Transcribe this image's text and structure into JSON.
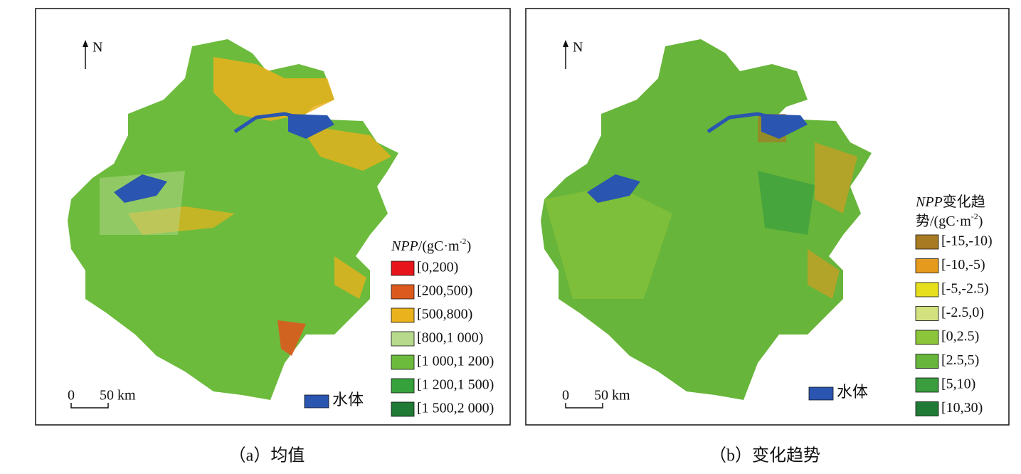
{
  "panels": [
    {
      "caption": "（a）均值",
      "north": "N",
      "scale_start": "0",
      "scale_end": "50 km",
      "water_label": "水体",
      "legend": {
        "title_lines": [
          {
            "italic": "NPP",
            "text": "/(gC·m",
            "sup": "-2",
            "end": ")"
          }
        ],
        "items": [
          {
            "label": "[0,200)",
            "color": "#e8141c"
          },
          {
            "label": "[200,500)",
            "color": "#dd5a1e"
          },
          {
            "label": "[500,800)",
            "color": "#eab21c"
          },
          {
            "label": "[800,1 000)",
            "color": "#b6d98b"
          },
          {
            "label": "[1 000,1 200)",
            "color": "#6cbb3c"
          },
          {
            "label": "[1 200,1 500)",
            "color": "#35a23c"
          },
          {
            "label": "[1 500,2 000)",
            "color": "#1f7a35"
          }
        ]
      }
    },
    {
      "caption": "（b）变化趋势",
      "north": "N",
      "scale_start": "0",
      "scale_end": "50 km",
      "water_label": "水体",
      "legend": {
        "title_lines": [
          {
            "italic": "NPP",
            "text": "变化趋"
          },
          {
            "text": "势/(gC·m",
            "sup": "-2",
            "end": ")"
          }
        ],
        "items": [
          {
            "label": "[-15,-10)",
            "color": "#a87a22"
          },
          {
            "label": "[-10,-5)",
            "color": "#e59a1e"
          },
          {
            "label": "[-5,-2.5)",
            "color": "#e6e01c"
          },
          {
            "label": "[-2.5,0)",
            "color": "#d3e27e"
          },
          {
            "label": "[0,2.5)",
            "color": "#8cc43a"
          },
          {
            "label": "[2.5,5)",
            "color": "#67b53a"
          },
          {
            "label": "[5,10)",
            "color": "#3a9e3e"
          },
          {
            "label": "[10,30)",
            "color": "#1f7a35"
          }
        ]
      }
    }
  ]
}
